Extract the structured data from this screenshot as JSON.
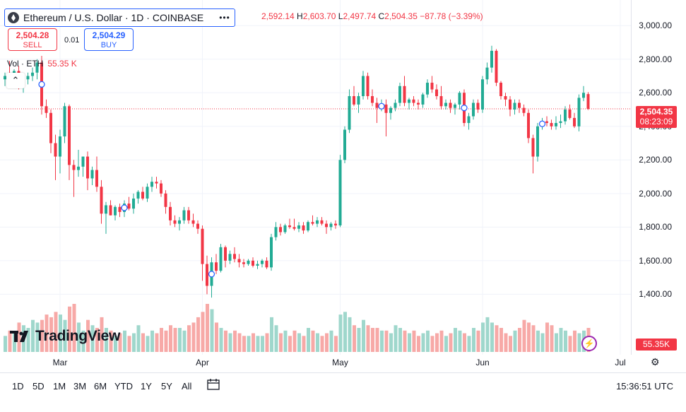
{
  "symbol": {
    "title": "Ethereum / U.S. Dollar · 1D · COINBASE"
  },
  "ohlc": {
    "o": "2,592.14",
    "h": "2,603.70",
    "l": "2,497.74",
    "c": "2,504.35",
    "change": "−87.78 (−3.39%)"
  },
  "trade": {
    "sell_price": "2,504.28",
    "sell_label": "SELL",
    "spread": "0.01",
    "buy_price": "2,504.29",
    "buy_label": "BUY"
  },
  "volume": {
    "label": "Vol · ETH",
    "value": "55.35 K",
    "axis_value": "55.35K"
  },
  "last_price": {
    "price": "2,504.35",
    "countdown": "08:23:09"
  },
  "brand": {
    "name": "TradingView"
  },
  "colors": {
    "up": "#22ab94",
    "down": "#f23645",
    "up_vol": "#9fd7cc",
    "down_vol": "#f7a9a7",
    "accent": "#2962ff"
  },
  "time_range_buttons": [
    "1D",
    "5D",
    "1M",
    "3M",
    "6M",
    "YTD",
    "1Y",
    "5Y",
    "All"
  ],
  "clock": "15:36:51 UTC",
  "chart_data": {
    "type": "candlestick",
    "title": "Ethereum / U.S. Dollar · 1D · COINBASE",
    "y_ticks": [
      "3,000.00",
      "2,800.00",
      "2,600.00",
      "2,400.00",
      "2,200.00",
      "2,000.00",
      "1,800.00",
      "1,600.00",
      "1,400.00"
    ],
    "y_tick_values": [
      3000,
      2800,
      2600,
      2400,
      2200,
      2000,
      1800,
      1600,
      1400
    ],
    "x_ticks": [
      "Mar",
      "Apr",
      "May",
      "Jun",
      "Jul"
    ],
    "x_tick_index": [
      12,
      43,
      73,
      104,
      134
    ],
    "ylim": [
      1250,
      3060
    ],
    "candles": [
      [
        2680,
        2720,
        2640,
        2700
      ],
      [
        2700,
        2790,
        2660,
        2690
      ],
      [
        2690,
        2740,
        2650,
        2730
      ],
      [
        2730,
        2760,
        2620,
        2640
      ],
      [
        2640,
        2700,
        2600,
        2680
      ],
      [
        2680,
        2720,
        2650,
        2700
      ],
      [
        2700,
        2750,
        2670,
        2720
      ],
      [
        2720,
        2800,
        2680,
        2780
      ],
      [
        2780,
        2820,
        2470,
        2520
      ],
      [
        2520,
        2560,
        2450,
        2480
      ],
      [
        2480,
        2500,
        2240,
        2300
      ],
      [
        2300,
        2350,
        2080,
        2220
      ],
      [
        2220,
        2380,
        2120,
        2340
      ],
      [
        2340,
        2540,
        2300,
        2520
      ],
      [
        2520,
        2530,
        2080,
        2170
      ],
      [
        2170,
        2200,
        1980,
        2140
      ],
      [
        2140,
        2260,
        2100,
        2160
      ],
      [
        2160,
        2220,
        2100,
        2220
      ],
      [
        2220,
        2250,
        2020,
        2090
      ],
      [
        2090,
        2160,
        2050,
        2140
      ],
      [
        2140,
        2220,
        2010,
        2040
      ],
      [
        2040,
        2080,
        1820,
        1880
      ],
      [
        1880,
        1950,
        1760,
        1930
      ],
      [
        1930,
        1960,
        1870,
        1870
      ],
      [
        1870,
        1930,
        1840,
        1920
      ],
      [
        1920,
        1940,
        1860,
        1890
      ],
      [
        1890,
        1960,
        1860,
        1940
      ],
      [
        1940,
        1980,
        1900,
        1910
      ],
      [
        1910,
        2000,
        1880,
        1970
      ],
      [
        1970,
        2020,
        1940,
        2010
      ],
      [
        2010,
        2040,
        1960,
        1970
      ],
      [
        1970,
        2060,
        1950,
        2040
      ],
      [
        2040,
        2100,
        2010,
        2070
      ],
      [
        2070,
        2100,
        2030,
        2060
      ],
      [
        2060,
        2080,
        1980,
        2000
      ],
      [
        2000,
        2020,
        1880,
        1920
      ],
      [
        1920,
        1950,
        1810,
        1840
      ],
      [
        1840,
        1870,
        1800,
        1820
      ],
      [
        1820,
        1860,
        1780,
        1840
      ],
      [
        1840,
        1920,
        1820,
        1900
      ],
      [
        1900,
        1920,
        1820,
        1840
      ],
      [
        1840,
        1880,
        1800,
        1820
      ],
      [
        1820,
        1840,
        1760,
        1790
      ],
      [
        1790,
        1810,
        1480,
        1580
      ],
      [
        1580,
        1630,
        1400,
        1450
      ],
      [
        1450,
        1620,
        1380,
        1590
      ],
      [
        1590,
        1640,
        1520,
        1540
      ],
      [
        1540,
        1700,
        1530,
        1680
      ],
      [
        1680,
        1690,
        1560,
        1600
      ],
      [
        1600,
        1660,
        1580,
        1640
      ],
      [
        1640,
        1680,
        1590,
        1610
      ],
      [
        1610,
        1640,
        1560,
        1590
      ],
      [
        1590,
        1610,
        1560,
        1580
      ],
      [
        1580,
        1610,
        1570,
        1600
      ],
      [
        1600,
        1620,
        1560,
        1570
      ],
      [
        1570,
        1600,
        1550,
        1580
      ],
      [
        1580,
        1610,
        1560,
        1600
      ],
      [
        1600,
        1620,
        1550,
        1560
      ],
      [
        1560,
        1760,
        1540,
        1740
      ],
      [
        1740,
        1830,
        1720,
        1800
      ],
      [
        1800,
        1820,
        1750,
        1770
      ],
      [
        1770,
        1820,
        1760,
        1810
      ],
      [
        1810,
        1850,
        1790,
        1800
      ],
      [
        1800,
        1850,
        1780,
        1790
      ],
      [
        1790,
        1830,
        1770,
        1810
      ],
      [
        1810,
        1830,
        1760,
        1780
      ],
      [
        1780,
        1840,
        1770,
        1830
      ],
      [
        1830,
        1870,
        1810,
        1820
      ],
      [
        1820,
        1860,
        1800,
        1840
      ],
      [
        1840,
        1860,
        1810,
        1820
      ],
      [
        1820,
        1840,
        1760,
        1800
      ],
      [
        1800,
        1830,
        1780,
        1820
      ],
      [
        1820,
        1840,
        1790,
        1810
      ],
      [
        1810,
        2230,
        1800,
        2200
      ],
      [
        2200,
        2400,
        2180,
        2380
      ],
      [
        2380,
        2620,
        2360,
        2580
      ],
      [
        2580,
        2640,
        2520,
        2530
      ],
      [
        2530,
        2600,
        2480,
        2580
      ],
      [
        2580,
        2730,
        2560,
        2700
      ],
      [
        2700,
        2720,
        2560,
        2580
      ],
      [
        2580,
        2620,
        2520,
        2540
      ],
      [
        2540,
        2570,
        2420,
        2510
      ],
      [
        2510,
        2560,
        2490,
        2530
      ],
      [
        2530,
        2560,
        2340,
        2480
      ],
      [
        2480,
        2520,
        2440,
        2510
      ],
      [
        2510,
        2560,
        2490,
        2540
      ],
      [
        2540,
        2660,
        2520,
        2640
      ],
      [
        2640,
        2700,
        2520,
        2540
      ],
      [
        2540,
        2570,
        2500,
        2560
      ],
      [
        2560,
        2580,
        2520,
        2540
      ],
      [
        2540,
        2560,
        2500,
        2530
      ],
      [
        2530,
        2600,
        2510,
        2590
      ],
      [
        2590,
        2680,
        2570,
        2660
      ],
      [
        2660,
        2700,
        2600,
        2620
      ],
      [
        2620,
        2650,
        2560,
        2580
      ],
      [
        2580,
        2640,
        2500,
        2520
      ],
      [
        2520,
        2560,
        2500,
        2540
      ],
      [
        2540,
        2560,
        2480,
        2510
      ],
      [
        2510,
        2540,
        2470,
        2530
      ],
      [
        2530,
        2610,
        2500,
        2600
      ],
      [
        2600,
        2620,
        2400,
        2420
      ],
      [
        2420,
        2480,
        2380,
        2460
      ],
      [
        2460,
        2560,
        2440,
        2540
      ],
      [
        2540,
        2560,
        2480,
        2500
      ],
      [
        2500,
        2700,
        2480,
        2680
      ],
      [
        2680,
        2780,
        2650,
        2750
      ],
      [
        2750,
        2880,
        2720,
        2850
      ],
      [
        2850,
        2860,
        2640,
        2660
      ],
      [
        2660,
        2670,
        2560,
        2580
      ],
      [
        2580,
        2600,
        2520,
        2560
      ],
      [
        2560,
        2580,
        2460,
        2500
      ],
      [
        2500,
        2560,
        2470,
        2540
      ],
      [
        2540,
        2560,
        2480,
        2510
      ],
      [
        2510,
        2530,
        2460,
        2480
      ],
      [
        2480,
        2500,
        2300,
        2330
      ],
      [
        2330,
        2350,
        2120,
        2220
      ],
      [
        2220,
        2420,
        2190,
        2400
      ],
      [
        2400,
        2450,
        2380,
        2430
      ],
      [
        2430,
        2460,
        2400,
        2420
      ],
      [
        2420,
        2440,
        2380,
        2400
      ],
      [
        2400,
        2460,
        2380,
        2420
      ],
      [
        2420,
        2470,
        2390,
        2430
      ],
      [
        2430,
        2520,
        2410,
        2500
      ],
      [
        2500,
        2530,
        2440,
        2450
      ],
      [
        2450,
        2480,
        2390,
        2400
      ],
      [
        2400,
        2590,
        2370,
        2570
      ],
      [
        2570,
        2640,
        2550,
        2600
      ],
      [
        2592.14,
        2603.7,
        2497.74,
        2504.35
      ]
    ],
    "volumes": [
      30,
      40,
      35,
      55,
      50,
      45,
      60,
      55,
      60,
      70,
      65,
      75,
      70,
      60,
      85,
      90,
      55,
      40,
      60,
      50,
      45,
      65,
      45,
      40,
      30,
      35,
      40,
      30,
      35,
      50,
      35,
      30,
      40,
      35,
      45,
      40,
      50,
      45,
      45,
      40,
      50,
      55,
      65,
      75,
      90,
      80,
      55,
      45,
      40,
      35,
      40,
      35,
      30,
      30,
      35,
      30,
      30,
      35,
      65,
      50,
      35,
      40,
      30,
      40,
      35,
      30,
      45,
      40,
      35,
      30,
      35,
      40,
      30,
      70,
      75,
      65,
      50,
      45,
      60,
      50,
      45,
      45,
      40,
      40,
      35,
      50,
      45,
      40,
      35,
      40,
      30,
      35,
      40,
      30,
      35,
      40,
      30,
      35,
      45,
      40,
      35,
      30,
      45,
      40,
      55,
      65,
      55,
      50,
      45,
      35,
      30,
      40,
      45,
      60,
      55,
      50,
      40,
      35,
      55,
      50,
      35,
      45,
      40,
      30,
      40,
      35,
      40,
      45
    ]
  }
}
